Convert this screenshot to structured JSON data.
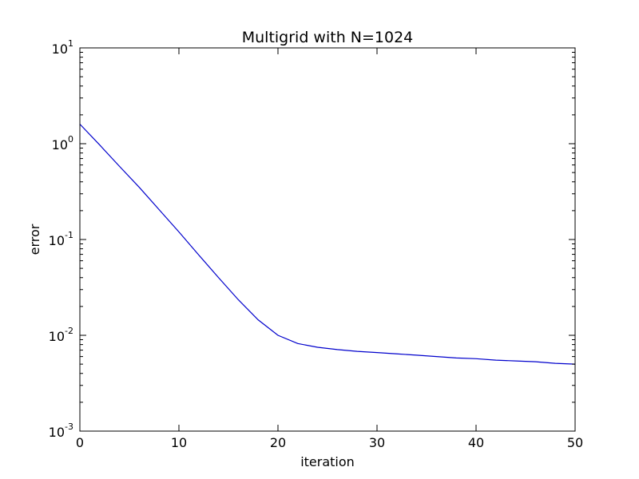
{
  "chart_data": {
    "type": "line",
    "title": "Multigrid with N=1024",
    "xlabel": "iteration",
    "ylabel": "error",
    "xlim": [
      0,
      50
    ],
    "ylim": [
      0.001,
      10
    ],
    "yscale": "log",
    "grid": false,
    "legend": "none",
    "x_ticks": [
      {
        "value": 0,
        "label": "0"
      },
      {
        "value": 10,
        "label": "10"
      },
      {
        "value": 20,
        "label": "20"
      },
      {
        "value": 30,
        "label": "30"
      },
      {
        "value": 40,
        "label": "40"
      },
      {
        "value": 50,
        "label": "50"
      }
    ],
    "y_ticks": [
      {
        "value": 10,
        "base": "10",
        "exp": "1"
      },
      {
        "value": 1,
        "base": "10",
        "exp": "0"
      },
      {
        "value": 0.1,
        "base": "10",
        "exp": "-1"
      },
      {
        "value": 0.01,
        "base": "10",
        "exp": "-2"
      },
      {
        "value": 0.001,
        "base": "10",
        "exp": "-3"
      }
    ],
    "series": [
      {
        "color": "#0000cc",
        "x": [
          0,
          2,
          4,
          6,
          8,
          10,
          12,
          14,
          16,
          18,
          20,
          22,
          24,
          26,
          28,
          30,
          32,
          34,
          36,
          38,
          40,
          42,
          44,
          46,
          48,
          50
        ],
        "y": [
          1.6,
          0.97,
          0.58,
          0.35,
          0.205,
          0.12,
          0.069,
          0.04,
          0.0235,
          0.0145,
          0.01,
          0.0082,
          0.0075,
          0.0071,
          0.0068,
          0.0066,
          0.0064,
          0.0062,
          0.006,
          0.0058,
          0.0057,
          0.0055,
          0.0054,
          0.0053,
          0.0051,
          0.005
        ]
      }
    ]
  }
}
